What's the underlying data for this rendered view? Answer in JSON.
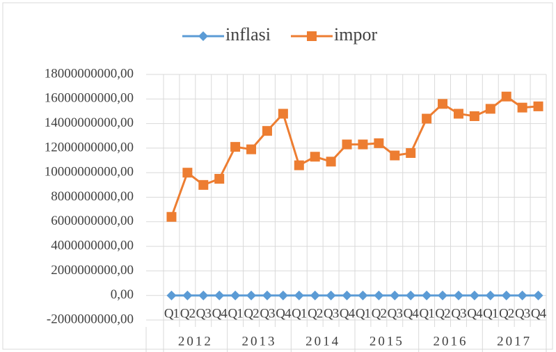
{
  "chart_data": {
    "type": "line",
    "categories": [
      "Q1",
      "Q2",
      "Q3",
      "Q4",
      "Q1",
      "Q2",
      "Q3",
      "Q4",
      "Q1",
      "Q2",
      "Q3",
      "Q4",
      "Q1",
      "Q2",
      "Q3",
      "Q4",
      "Q1",
      "Q2",
      "Q3",
      "Q4",
      "Q1",
      "Q2",
      "Q3",
      "Q4"
    ],
    "years": [
      "2012",
      "2013",
      "2014",
      "2015",
      "2016",
      "2017"
    ],
    "series": [
      {
        "name": "inflasi",
        "color": "#5b9bd5",
        "marker": "diamond",
        "values": [
          0,
          0,
          0,
          0,
          0,
          0,
          0,
          0,
          0,
          0,
          0,
          0,
          0,
          0,
          0,
          0,
          0,
          0,
          0,
          0,
          0,
          0,
          0,
          0
        ]
      },
      {
        "name": "impor",
        "color": "#ed7d31",
        "marker": "square",
        "values": [
          6400000000,
          10000000000,
          9000000000,
          9500000000,
          12100000000,
          11900000000,
          13400000000,
          14800000000,
          10600000000,
          11300000000,
          10900000000,
          12300000000,
          12300000000,
          12400000000,
          11400000000,
          11600000000,
          14400000000,
          15600000000,
          14800000000,
          14600000000,
          15200000000,
          16200000000,
          15300000000,
          15400000000
        ]
      }
    ],
    "ylim": [
      -2000000000,
      18000000000
    ],
    "yticks": [
      {
        "value": -2000000000,
        "label": "-2000000000,00"
      },
      {
        "value": 0,
        "label": "0,00"
      },
      {
        "value": 2000000000,
        "label": "2000000000,00"
      },
      {
        "value": 4000000000,
        "label": "4000000000,00"
      },
      {
        "value": 6000000000,
        "label": "6000000000,00"
      },
      {
        "value": 8000000000,
        "label": "8000000000,00"
      },
      {
        "value": 10000000000,
        "label": "10000000000,00"
      },
      {
        "value": 12000000000,
        "label": "12000000000,00"
      },
      {
        "value": 14000000000,
        "label": "14000000000,00"
      },
      {
        "value": 16000000000,
        "label": "16000000000,00"
      },
      {
        "value": 18000000000,
        "label": "18000000000,00"
      }
    ],
    "grid": true,
    "legend": "top"
  }
}
